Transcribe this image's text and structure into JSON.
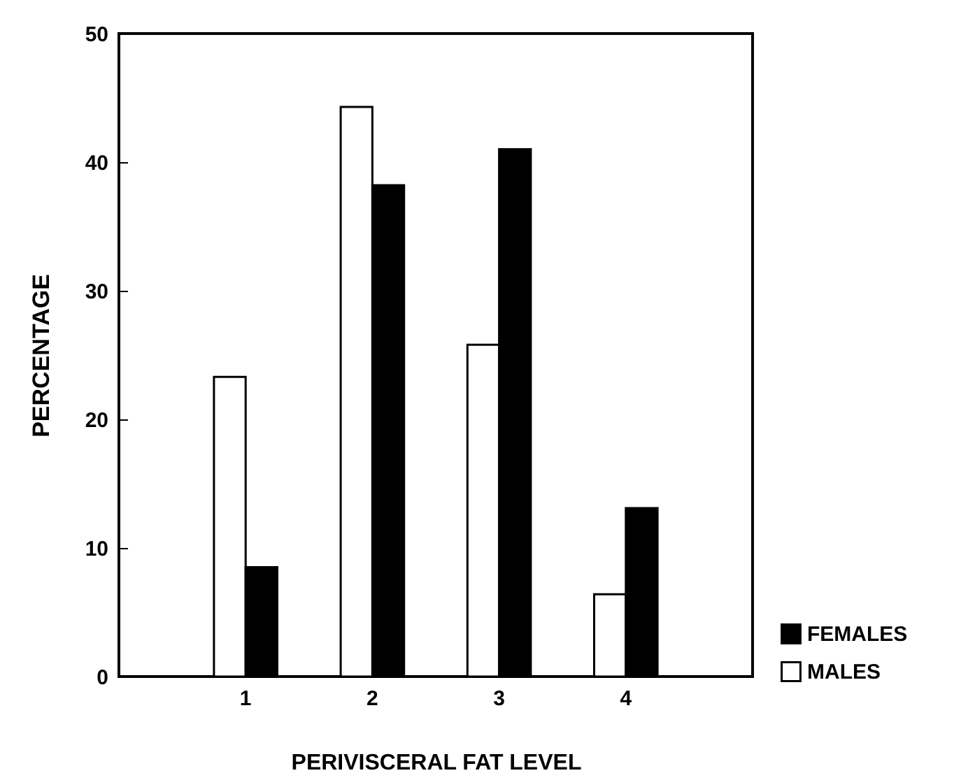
{
  "chart_data": {
    "type": "bar",
    "xlabel": "PERIVISCERAL FAT LEVEL",
    "ylabel": "PERCENTAGE",
    "categories": [
      "1",
      "2",
      "3",
      "4"
    ],
    "series": [
      {
        "name": "MALES",
        "color": "#ffffff",
        "values": [
          23.3,
          44.3,
          25.8,
          6.4
        ]
      },
      {
        "name": "FEMALES",
        "color": "#000000",
        "values": [
          8.5,
          38.2,
          41.0,
          13.1
        ]
      }
    ],
    "ylim": [
      0,
      50
    ],
    "yticks": [
      0,
      10,
      20,
      30,
      40,
      50
    ],
    "grid": false,
    "legend": "bottom right"
  }
}
